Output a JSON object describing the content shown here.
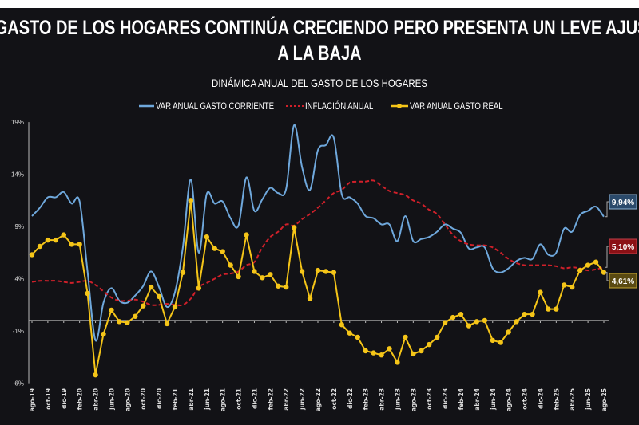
{
  "title_line1": "EL GASTO DE LOS HOGARES CONTINÚA CRECIENDO PERO PRESENTA UN LEVE AJUSTE",
  "title_line2": "A LA BAJA",
  "colors": {
    "background": "#121216",
    "corriente": "#6fa8dc",
    "inflacion": "#d0202a",
    "real": "#f5c518"
  },
  "chart_data": {
    "type": "line",
    "title": "DINÁMICA ANUAL DEL GASTO DE LOS HOGARES",
    "legend_position": "top",
    "grid": false,
    "ylim": [
      -6,
      19
    ],
    "yticks": [
      "19%",
      "14%",
      "9%",
      "4%",
      "-1%",
      "-6%"
    ],
    "ytick_values": [
      19,
      14,
      9,
      4,
      -1,
      -6
    ],
    "x": [
      "ago-19",
      "sep-19",
      "oct-19",
      "nov-19",
      "dic-19",
      "ene-20",
      "feb-20",
      "mar-20",
      "abr-20",
      "may-20",
      "jun-20",
      "jul-20",
      "ago-20",
      "sep-20",
      "oct-20",
      "nov-20",
      "dic-20",
      "ene-21",
      "feb-21",
      "mar-21",
      "abr-21",
      "may-21",
      "jun-21",
      "jul-21",
      "ago-21",
      "sep-21",
      "oct-21",
      "nov-21",
      "dic-21",
      "ene-22",
      "feb-22",
      "mar-22",
      "abr-22",
      "may-22",
      "jun-22",
      "jul-22",
      "ago-22",
      "sep-22",
      "oct-22",
      "nov-22",
      "dic-22",
      "ene-23",
      "feb-23",
      "mar-23",
      "abr-23",
      "may-23",
      "jun-23",
      "jul-23",
      "ago-23",
      "sep-23",
      "oct-23",
      "nov-23",
      "dic-23",
      "ene-24",
      "feb-24",
      "mar-24",
      "abr-24",
      "may-24",
      "jun-24",
      "jul-24",
      "ago-24",
      "sep-24",
      "oct-24",
      "nov-24",
      "dic-24",
      "ene-25",
      "feb-25",
      "mar-25",
      "abr-25",
      "may-25",
      "jun-25",
      "jul-25",
      "ago-25"
    ],
    "xtick_labels": [
      "ago-19",
      "oct-19",
      "dic-19",
      "feb-20",
      "abr-20",
      "jun-20",
      "ago-20",
      "oct-20",
      "dic-20",
      "feb-21",
      "abr-21",
      "jun-21",
      "ago-21",
      "oct-21",
      "dic-21",
      "feb-22",
      "abr-22",
      "jun-22",
      "ago-22",
      "oct-22",
      "dic-22",
      "feb-23",
      "abr-23",
      "jun-23",
      "ago-23",
      "oct-23",
      "dic-23",
      "feb-24",
      "abr-24",
      "jun-24",
      "ago-24",
      "oct-24",
      "dic-24",
      "feb-25",
      "abr-25",
      "jun-25",
      "ago-25"
    ],
    "series": [
      {
        "name": "VAR ANUAL GASTO CORRIENTE",
        "style": "smooth-solid",
        "end_label": "9,94%",
        "values": [
          10.0,
          10.8,
          11.8,
          11.8,
          12.3,
          11.2,
          11.4,
          4.7,
          -1.9,
          1.7,
          3.1,
          1.9,
          1.7,
          2.4,
          3.3,
          4.7,
          3.2,
          1.3,
          2.7,
          7.0,
          13.5,
          6.5,
          12.1,
          11.2,
          11.4,
          9.8,
          9.1,
          13.7,
          10.5,
          11.6,
          12.7,
          12.2,
          12.6,
          18.7,
          14.7,
          12.5,
          16.3,
          16.8,
          17.5,
          12.1,
          11.8,
          11.2,
          10.0,
          9.8,
          9.2,
          9.2,
          7.6,
          10.0,
          7.6,
          7.8,
          8.0,
          8.5,
          9.2,
          8.8,
          8.4,
          6.9,
          7.0,
          7.0,
          5.0,
          4.6,
          5.0,
          5.7,
          6.0,
          5.9,
          7.3,
          6.3,
          6.5,
          8.8,
          8.5,
          10.1,
          10.5,
          10.9,
          9.94
        ]
      },
      {
        "name": "INFLACIÓN ANUAL",
        "style": "smooth-dashed",
        "end_label": "5,10%",
        "values": [
          3.7,
          3.8,
          3.8,
          3.8,
          3.7,
          3.6,
          3.7,
          3.8,
          3.4,
          2.8,
          2.2,
          1.9,
          1.9,
          2.0,
          1.8,
          1.5,
          1.5,
          1.6,
          1.5,
          1.5,
          2.1,
          3.2,
          3.6,
          4.0,
          4.4,
          4.5,
          4.7,
          5.3,
          5.6,
          7.0,
          8.0,
          8.5,
          9.2,
          9.1,
          9.7,
          10.2,
          10.8,
          11.5,
          12.2,
          12.5,
          13.2,
          13.3,
          13.3,
          13.4,
          12.9,
          12.4,
          12.2,
          12.0,
          11.5,
          11.2,
          10.6,
          10.2,
          9.2,
          8.2,
          7.6,
          7.3,
          7.2,
          7.2,
          7.0,
          6.5,
          5.9,
          5.5,
          5.3,
          5.3,
          5.3,
          5.3,
          5.2,
          5.0,
          5.1,
          5.0,
          4.8,
          4.9,
          5.1
        ]
      },
      {
        "name": "VAR ANUAL GASTO REAL",
        "style": "line-markers",
        "end_label": "4,61%",
        "values": [
          6.3,
          7.1,
          7.7,
          7.7,
          8.2,
          7.3,
          7.3,
          2.6,
          -5.2,
          -1.3,
          1.0,
          -0.1,
          -0.2,
          0.4,
          1.4,
          3.2,
          2.3,
          -0.3,
          1.3,
          4.6,
          11.5,
          3.1,
          8.0,
          6.9,
          6.6,
          5.3,
          4.2,
          8.2,
          4.7,
          4.1,
          4.4,
          3.3,
          3.2,
          8.9,
          4.7,
          2.1,
          4.8,
          4.7,
          4.6,
          -0.4,
          -1.2,
          -1.6,
          -2.9,
          -3.1,
          -3.3,
          -2.7,
          -4.0,
          -1.6,
          -3.2,
          -2.9,
          -2.3,
          -1.6,
          -0.2,
          0.3,
          0.6,
          -0.5,
          -0.1,
          0.0,
          -1.9,
          -2.1,
          -1.1,
          -0.1,
          0.6,
          0.6,
          2.7,
          1.1,
          1.1,
          3.4,
          3.2,
          4.8,
          5.3,
          5.6,
          4.61
        ]
      }
    ]
  }
}
